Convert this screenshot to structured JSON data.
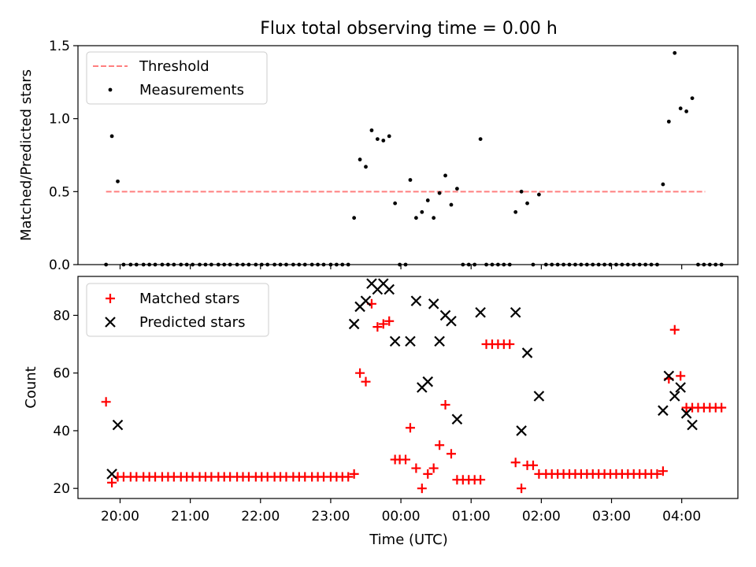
{
  "chart_data": [
    {
      "type": "scatter",
      "title": "Flux total observing time = 0.00 h",
      "xlabel": "",
      "ylabel": "Matched/Predicted stars",
      "xlim": [
        "19:24",
        "04:48"
      ],
      "ylim": [
        0,
        1.5
      ],
      "yticks": [
        "0.0",
        "0.5",
        "1.0",
        "1.5"
      ],
      "legend_position": "upper-left",
      "threshold": {
        "name": "Threshold",
        "value": 0.5,
        "x_range": [
          "19:48",
          "04:20"
        ],
        "color": "#ff7f7f",
        "style": "dashed"
      },
      "series": [
        {
          "name": "Measurements",
          "color": "#000000",
          "marker": "dot",
          "points": [
            [
              "19:48",
              0
            ],
            [
              "19:53",
              0.88
            ],
            [
              "19:58",
              0.57
            ],
            [
              "20:03",
              0
            ],
            [
              "20:09",
              0
            ],
            [
              "20:14",
              0
            ],
            [
              "20:20",
              0
            ],
            [
              "20:25",
              0
            ],
            [
              "20:30",
              0
            ],
            [
              "20:36",
              0
            ],
            [
              "20:41",
              0
            ],
            [
              "20:46",
              0
            ],
            [
              "20:52",
              0
            ],
            [
              "20:57",
              0
            ],
            [
              "21:02",
              0
            ],
            [
              "21:08",
              0
            ],
            [
              "21:13",
              0
            ],
            [
              "21:18",
              0
            ],
            [
              "21:24",
              0
            ],
            [
              "21:29",
              0
            ],
            [
              "21:34",
              0
            ],
            [
              "21:40",
              0
            ],
            [
              "21:45",
              0
            ],
            [
              "21:50",
              0
            ],
            [
              "21:56",
              0
            ],
            [
              "22:01",
              0
            ],
            [
              "22:06",
              0
            ],
            [
              "22:12",
              0
            ],
            [
              "22:17",
              0
            ],
            [
              "22:22",
              0
            ],
            [
              "22:28",
              0
            ],
            [
              "22:33",
              0
            ],
            [
              "22:38",
              0
            ],
            [
              "22:44",
              0
            ],
            [
              "22:49",
              0
            ],
            [
              "22:54",
              0
            ],
            [
              "23:00",
              0
            ],
            [
              "23:05",
              0
            ],
            [
              "23:10",
              0
            ],
            [
              "23:15",
              0
            ],
            [
              "23:20",
              0.32
            ],
            [
              "23:25",
              0.72
            ],
            [
              "23:30",
              0.67
            ],
            [
              "23:35",
              0.92
            ],
            [
              "23:40",
              0.86
            ],
            [
              "23:45",
              0.85
            ],
            [
              "23:50",
              0.88
            ],
            [
              "23:55",
              0.42
            ],
            [
              "23:59",
              0
            ],
            [
              "00:04",
              0
            ],
            [
              "00:08",
              0.58
            ],
            [
              "00:13",
              0.32
            ],
            [
              "00:18",
              0.36
            ],
            [
              "00:23",
              0.44
            ],
            [
              "00:28",
              0.32
            ],
            [
              "00:33",
              0.49
            ],
            [
              "00:38",
              0.61
            ],
            [
              "00:43",
              0.41
            ],
            [
              "00:48",
              0.52
            ],
            [
              "00:53",
              0
            ],
            [
              "00:58",
              0
            ],
            [
              "01:03",
              0
            ],
            [
              "01:08",
              0.86
            ],
            [
              "01:13",
              0
            ],
            [
              "01:18",
              0
            ],
            [
              "01:23",
              0
            ],
            [
              "01:28",
              0
            ],
            [
              "01:33",
              0
            ],
            [
              "01:38",
              0.36
            ],
            [
              "01:43",
              0.5
            ],
            [
              "01:48",
              0.42
            ],
            [
              "01:53",
              0
            ],
            [
              "01:58",
              0.48
            ],
            [
              "02:04",
              0
            ],
            [
              "02:09",
              0
            ],
            [
              "02:14",
              0
            ],
            [
              "02:19",
              0
            ],
            [
              "02:24",
              0
            ],
            [
              "02:29",
              0
            ],
            [
              "02:34",
              0
            ],
            [
              "02:39",
              0
            ],
            [
              "02:44",
              0
            ],
            [
              "02:49",
              0
            ],
            [
              "02:54",
              0
            ],
            [
              "02:59",
              0
            ],
            [
              "03:04",
              0
            ],
            [
              "03:09",
              0
            ],
            [
              "03:14",
              0
            ],
            [
              "03:19",
              0
            ],
            [
              "03:24",
              0
            ],
            [
              "03:29",
              0
            ],
            [
              "03:34",
              0
            ],
            [
              "03:39",
              0
            ],
            [
              "03:44",
              0.55
            ],
            [
              "03:49",
              0.98
            ],
            [
              "03:54",
              1.45
            ],
            [
              "03:59",
              1.07
            ],
            [
              "04:04",
              1.05
            ],
            [
              "04:09",
              1.14
            ],
            [
              "04:14",
              0
            ],
            [
              "04:19",
              0
            ],
            [
              "04:24",
              0
            ],
            [
              "04:29",
              0
            ],
            [
              "04:34",
              0
            ]
          ]
        }
      ]
    },
    {
      "type": "scatter",
      "title": "",
      "xlabel": "Time (UTC)",
      "ylabel": "Count",
      "xlim": [
        "19:24",
        "04:48"
      ],
      "ylim": [
        16.5,
        93.5
      ],
      "xticks": [
        "20:00",
        "21:00",
        "22:00",
        "23:00",
        "00:00",
        "01:00",
        "02:00",
        "03:00",
        "04:00"
      ],
      "yticks": [
        "20",
        "40",
        "60",
        "80"
      ],
      "legend_position": "upper-left",
      "series": [
        {
          "name": "Matched stars",
          "color": "#ff0000",
          "marker": "plus",
          "points": [
            [
              "19:48",
              50
            ],
            [
              "19:53",
              22
            ],
            [
              "19:58",
              24
            ],
            [
              "20:03",
              24
            ],
            [
              "20:09",
              24
            ],
            [
              "20:14",
              24
            ],
            [
              "20:20",
              24
            ],
            [
              "20:25",
              24
            ],
            [
              "20:30",
              24
            ],
            [
              "20:36",
              24
            ],
            [
              "20:41",
              24
            ],
            [
              "20:46",
              24
            ],
            [
              "20:52",
              24
            ],
            [
              "20:57",
              24
            ],
            [
              "21:02",
              24
            ],
            [
              "21:08",
              24
            ],
            [
              "21:13",
              24
            ],
            [
              "21:18",
              24
            ],
            [
              "21:24",
              24
            ],
            [
              "21:29",
              24
            ],
            [
              "21:34",
              24
            ],
            [
              "21:40",
              24
            ],
            [
              "21:45",
              24
            ],
            [
              "21:50",
              24
            ],
            [
              "21:56",
              24
            ],
            [
              "22:01",
              24
            ],
            [
              "22:06",
              24
            ],
            [
              "22:12",
              24
            ],
            [
              "22:17",
              24
            ],
            [
              "22:22",
              24
            ],
            [
              "22:28",
              24
            ],
            [
              "22:33",
              24
            ],
            [
              "22:38",
              24
            ],
            [
              "22:44",
              24
            ],
            [
              "22:49",
              24
            ],
            [
              "22:54",
              24
            ],
            [
              "23:00",
              24
            ],
            [
              "23:05",
              24
            ],
            [
              "23:10",
              24
            ],
            [
              "23:15",
              24
            ],
            [
              "23:20",
              25
            ],
            [
              "23:25",
              60
            ],
            [
              "23:30",
              57
            ],
            [
              "23:35",
              84
            ],
            [
              "23:40",
              76
            ],
            [
              "23:45",
              77
            ],
            [
              "23:50",
              78
            ],
            [
              "23:55",
              30
            ],
            [
              "23:59",
              30
            ],
            [
              "00:04",
              30
            ],
            [
              "00:08",
              41
            ],
            [
              "00:13",
              27
            ],
            [
              "00:18",
              20
            ],
            [
              "00:23",
              25
            ],
            [
              "00:28",
              27
            ],
            [
              "00:33",
              35
            ],
            [
              "00:38",
              49
            ],
            [
              "00:43",
              32
            ],
            [
              "00:48",
              23
            ],
            [
              "00:53",
              23
            ],
            [
              "00:58",
              23
            ],
            [
              "01:03",
              23
            ],
            [
              "01:08",
              23
            ],
            [
              "01:13",
              70
            ],
            [
              "01:18",
              70
            ],
            [
              "01:23",
              70
            ],
            [
              "01:28",
              70
            ],
            [
              "01:33",
              70
            ],
            [
              "01:38",
              29
            ],
            [
              "01:43",
              20
            ],
            [
              "01:48",
              28
            ],
            [
              "01:53",
              28
            ],
            [
              "01:58",
              25
            ],
            [
              "02:04",
              25
            ],
            [
              "02:09",
              25
            ],
            [
              "02:14",
              25
            ],
            [
              "02:19",
              25
            ],
            [
              "02:24",
              25
            ],
            [
              "02:29",
              25
            ],
            [
              "02:34",
              25
            ],
            [
              "02:39",
              25
            ],
            [
              "02:44",
              25
            ],
            [
              "02:49",
              25
            ],
            [
              "02:54",
              25
            ],
            [
              "02:59",
              25
            ],
            [
              "03:04",
              25
            ],
            [
              "03:09",
              25
            ],
            [
              "03:14",
              25
            ],
            [
              "03:19",
              25
            ],
            [
              "03:24",
              25
            ],
            [
              "03:29",
              25
            ],
            [
              "03:34",
              25
            ],
            [
              "03:39",
              25
            ],
            [
              "03:44",
              26
            ],
            [
              "03:49",
              58
            ],
            [
              "03:54",
              75
            ],
            [
              "03:59",
              59
            ],
            [
              "04:04",
              48
            ],
            [
              "04:09",
              48
            ],
            [
              "04:14",
              48
            ],
            [
              "04:19",
              48
            ],
            [
              "04:24",
              48
            ],
            [
              "04:29",
              48
            ],
            [
              "04:34",
              48
            ]
          ]
        },
        {
          "name": "Predicted stars",
          "color": "#000000",
          "marker": "x",
          "points": [
            [
              "19:53",
              25
            ],
            [
              "19:58",
              42
            ],
            [
              "23:20",
              77
            ],
            [
              "23:25",
              83
            ],
            [
              "23:30",
              85
            ],
            [
              "23:35",
              91
            ],
            [
              "23:40",
              89
            ],
            [
              "23:45",
              91
            ],
            [
              "23:50",
              89
            ],
            [
              "23:55",
              71
            ],
            [
              "00:08",
              71
            ],
            [
              "00:13",
              85
            ],
            [
              "00:18",
              55
            ],
            [
              "00:23",
              57
            ],
            [
              "00:28",
              84
            ],
            [
              "00:33",
              71
            ],
            [
              "00:38",
              80
            ],
            [
              "00:43",
              78
            ],
            [
              "00:48",
              44
            ],
            [
              "01:08",
              81
            ],
            [
              "01:38",
              81
            ],
            [
              "01:43",
              40
            ],
            [
              "01:48",
              67
            ],
            [
              "01:58",
              52
            ],
            [
              "03:44",
              47
            ],
            [
              "03:49",
              59
            ],
            [
              "03:54",
              52
            ],
            [
              "03:59",
              55
            ],
            [
              "04:04",
              46
            ],
            [
              "04:09",
              42
            ]
          ]
        }
      ]
    }
  ]
}
